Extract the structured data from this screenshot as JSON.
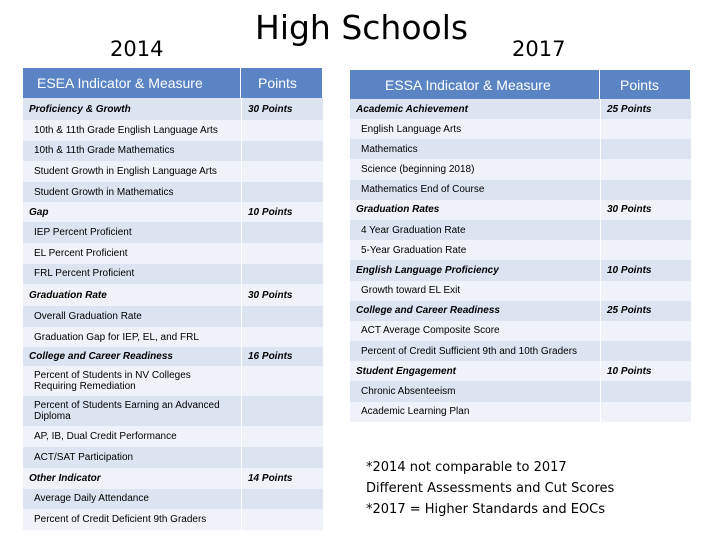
{
  "page": {
    "title": "High Schools",
    "year_left": "2014",
    "year_right": "2017"
  },
  "table_2014": {
    "headers": [
      "ESEA Indicator & Measure",
      "Points"
    ],
    "rows": [
      {
        "label": "Proficiency & Growth",
        "points": "30 Points",
        "section": true
      },
      {
        "label": "10th & 11th Grade English Language Arts",
        "points": "",
        "section": false
      },
      {
        "label": "10th & 11th Grade Mathematics",
        "points": "",
        "section": false
      },
      {
        "label": "Student Growth in English Language Arts",
        "points": "",
        "section": false
      },
      {
        "label": "Student Growth in Mathematics",
        "points": "",
        "section": false
      },
      {
        "label": "Gap",
        "points": "10 Points",
        "section": true
      },
      {
        "label": "IEP Percent Proficient",
        "points": "",
        "section": false
      },
      {
        "label": "EL Percent Proficient",
        "points": "",
        "section": false
      },
      {
        "label": "FRL Percent Proficient",
        "points": "",
        "section": false
      },
      {
        "label": "Graduation Rate",
        "points": "30 Points",
        "section": true
      },
      {
        "label": "Overall Graduation Rate",
        "points": "",
        "section": false
      },
      {
        "label": "Graduation Gap for IEP, EL, and FRL",
        "points": "",
        "section": false
      },
      {
        "label": "College and Career Readiness",
        "points": "16 Points",
        "section": true
      },
      {
        "label": "Percent of Students in NV Colleges Requiring Remediation",
        "points": "",
        "section": false
      },
      {
        "label": "Percent of Students Earning an Advanced Diploma",
        "points": "",
        "section": false
      },
      {
        "label": "AP, IB, Dual Credit Performance",
        "points": "",
        "section": false
      },
      {
        "label": "ACT/SAT Participation",
        "points": "",
        "section": false
      },
      {
        "label": "Other Indicator",
        "points": "14 Points",
        "section": true
      },
      {
        "label": "Average Daily Attendance",
        "points": "",
        "section": false
      },
      {
        "label": "Percent of Credit Deficient 9th Graders",
        "points": "",
        "section": false
      }
    ]
  },
  "table_2017": {
    "headers": [
      "ESSA Indicator & Measure",
      "Points"
    ],
    "rows": [
      {
        "label": "Academic Achievement",
        "points": "25 Points",
        "section": true
      },
      {
        "label": "English Language Arts",
        "points": "",
        "section": false
      },
      {
        "label": "Mathematics",
        "points": "",
        "section": false
      },
      {
        "label": "Science (beginning 2018)",
        "points": "",
        "section": false
      },
      {
        "label": "Mathematics End of Course",
        "points": "",
        "section": false
      },
      {
        "label": "Graduation Rates",
        "points": "30 Points",
        "section": true
      },
      {
        "label": "4 Year Graduation Rate",
        "points": "",
        "section": false
      },
      {
        "label": "5-Year Graduation Rate",
        "points": "",
        "section": false
      },
      {
        "label": "English Language Proficiency",
        "points": "10 Points",
        "section": true
      },
      {
        "label": "Growth toward EL Exit",
        "points": "",
        "section": false
      },
      {
        "label": "College and Career Readiness",
        "points": "25 Points",
        "section": true
      },
      {
        "label": "ACT Average Composite Score",
        "points": "",
        "section": false
      },
      {
        "label": "Percent of Credit Sufficient 9th and 10th Graders",
        "points": "",
        "section": false
      },
      {
        "label": "Student Engagement",
        "points": "10 Points",
        "section": true
      },
      {
        "label": "Chronic Absenteeism",
        "points": "",
        "section": false
      },
      {
        "label": "Academic Learning Plan",
        "points": "",
        "section": false
      }
    ]
  },
  "notes": [
    "*2014 not comparable to 2017",
    "Different Assessments and Cut Scores",
    "*2017 = Higher Standards and EOCs"
  ]
}
